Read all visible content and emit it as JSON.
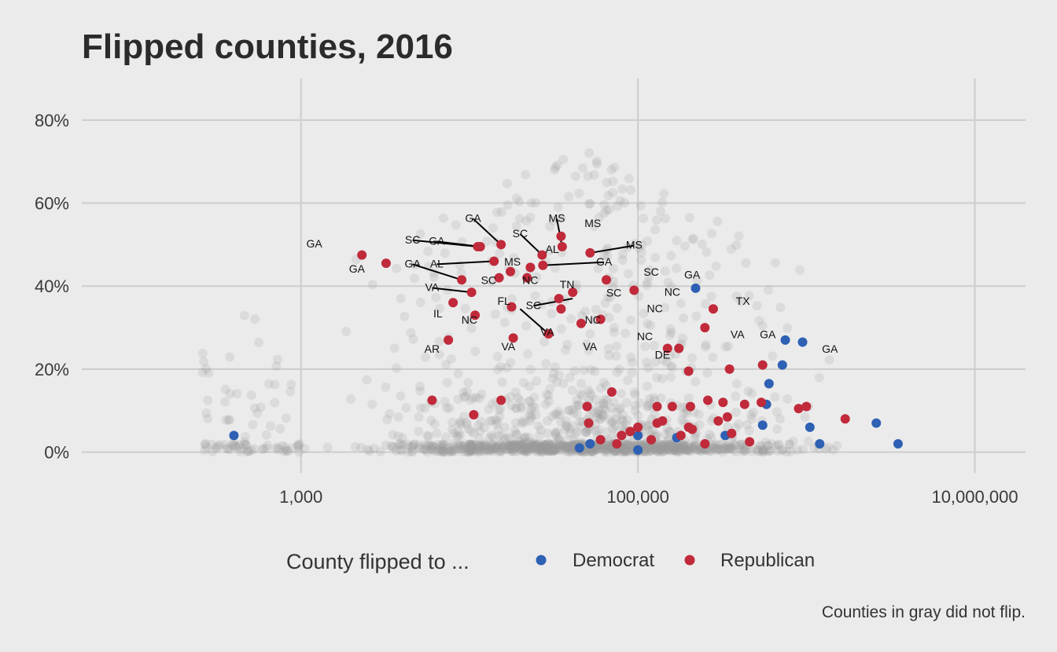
{
  "chart_data": {
    "type": "scatter",
    "title": "Flipped counties, 2016",
    "caption": "Counties in gray did not flip.",
    "xscale": "log10",
    "xlim": [
      50,
      20000000
    ],
    "ylim": [
      -0.05,
      0.9
    ],
    "x_ticks": [
      {
        "value": 1000,
        "label": "1,000"
      },
      {
        "value": 100000,
        "label": "100,000"
      },
      {
        "value": 10000000,
        "label": "10,000,000"
      }
    ],
    "y_ticks": [
      {
        "value": 0,
        "label": "0%"
      },
      {
        "value": 0.2,
        "label": "20%"
      },
      {
        "value": 0.4,
        "label": "40%"
      },
      {
        "value": 0.6,
        "label": "60%"
      },
      {
        "value": 0.8,
        "label": "80%"
      }
    ],
    "grid": true,
    "legend": {
      "title": "County flipped to ...",
      "position": "bottom",
      "entries": [
        {
          "label": "Democrat",
          "color": "#2e60b4"
        },
        {
          "label": "Republican",
          "color": "#c02a3a"
        }
      ]
    },
    "gray_color": "#9a9a9a",
    "series": [
      {
        "name": "Democrat",
        "color": "#2e60b4",
        "points": [
          [
            400,
            0.04
          ],
          [
            45000,
            0.01
          ],
          [
            52000,
            0.02
          ],
          [
            100000,
            0.005
          ],
          [
            100000,
            0.04
          ],
          [
            170000,
            0.035
          ],
          [
            220000,
            0.395
          ],
          [
            330000,
            0.04
          ],
          [
            550000,
            0.065
          ],
          [
            600000,
            0.165
          ],
          [
            580000,
            0.115
          ],
          [
            750000,
            0.27
          ],
          [
            720000,
            0.21
          ],
          [
            950000,
            0.265
          ],
          [
            1050000,
            0.06
          ],
          [
            1200000,
            0.02
          ],
          [
            2600000,
            0.07
          ],
          [
            3500000,
            0.02
          ]
        ]
      },
      {
        "name": "Republican",
        "color": "#c02a3a",
        "points": [
          [
            2300,
            0.475
          ],
          [
            3200,
            0.455
          ],
          [
            6000,
            0.125
          ],
          [
            7500,
            0.27
          ],
          [
            9000,
            0.415
          ],
          [
            8000,
            0.36
          ],
          [
            10800,
            0.33
          ],
          [
            10300,
            0.385
          ],
          [
            10600,
            0.09
          ],
          [
            11200,
            0.495
          ],
          [
            11600,
            0.495
          ],
          [
            14000,
            0.46
          ],
          [
            15000,
            0.42
          ],
          [
            15400,
            0.125
          ],
          [
            15400,
            0.5
          ],
          [
            17500,
            0.435
          ],
          [
            17800,
            0.35
          ],
          [
            18200,
            0.275
          ],
          [
            22000,
            0.42
          ],
          [
            23000,
            0.445
          ],
          [
            27000,
            0.475
          ],
          [
            27300,
            0.45
          ],
          [
            29500,
            0.285
          ],
          [
            35000,
            0.52
          ],
          [
            35500,
            0.495
          ],
          [
            34000,
            0.37
          ],
          [
            35000,
            0.345
          ],
          [
            41000,
            0.385
          ],
          [
            46000,
            0.31
          ],
          [
            50000,
            0.11
          ],
          [
            51000,
            0.07
          ],
          [
            60000,
            0.32
          ],
          [
            70000,
            0.145
          ],
          [
            52000,
            0.48
          ],
          [
            65000,
            0.415
          ],
          [
            95000,
            0.39
          ],
          [
            150000,
            0.25
          ],
          [
            175000,
            0.25
          ],
          [
            200000,
            0.195
          ],
          [
            250000,
            0.3
          ],
          [
            280000,
            0.345
          ],
          [
            350000,
            0.2
          ],
          [
            130000,
            0.11
          ],
          [
            160000,
            0.11
          ],
          [
            205000,
            0.11
          ],
          [
            260000,
            0.125
          ],
          [
            320000,
            0.12
          ],
          [
            430000,
            0.115
          ],
          [
            540000,
            0.12
          ],
          [
            550000,
            0.21
          ],
          [
            900000,
            0.105
          ],
          [
            1000000,
            0.11
          ],
          [
            1700000,
            0.08
          ],
          [
            100000,
            0.06
          ],
          [
            130000,
            0.07
          ],
          [
            180000,
            0.04
          ],
          [
            120000,
            0.03
          ],
          [
            200000,
            0.06
          ],
          [
            250000,
            0.02
          ],
          [
            300000,
            0.075
          ],
          [
            360000,
            0.045
          ],
          [
            460000,
            0.025
          ],
          [
            340000,
            0.085
          ],
          [
            90000,
            0.05
          ],
          [
            75000,
            0.02
          ],
          [
            80000,
            0.04
          ],
          [
            60000,
            0.03
          ],
          [
            140000,
            0.075
          ],
          [
            210000,
            0.055
          ]
        ]
      }
    ],
    "annotations": [
      {
        "text": "GA",
        "x": 1200,
        "y": 0.493,
        "point_x": 2300,
        "point_y": 0.475,
        "line": false
      },
      {
        "text": "GA",
        "x": 2150,
        "y": 0.433,
        "point_x": 3200,
        "point_y": 0.455,
        "line": false
      },
      {
        "text": "SC",
        "x": 4600,
        "y": 0.503,
        "point_x": 11200,
        "point_y": 0.495,
        "line": true
      },
      {
        "text": "GA",
        "x": 6400,
        "y": 0.5,
        "point_x": 11600,
        "point_y": 0.495,
        "line": true
      },
      {
        "text": "GA",
        "x": 10500,
        "y": 0.555,
        "point_x": 15400,
        "point_y": 0.5,
        "line": true
      },
      {
        "text": "SC",
        "x": 20000,
        "y": 0.518,
        "point_x": 27000,
        "point_y": 0.475,
        "line": true
      },
      {
        "text": "AL",
        "x": 6400,
        "y": 0.445,
        "point_x": 14000,
        "point_y": 0.46,
        "line": true
      },
      {
        "text": "GA",
        "x": 4600,
        "y": 0.445,
        "point_x": 9000,
        "point_y": 0.415,
        "line": true
      },
      {
        "text": "MS",
        "x": 18000,
        "y": 0.45,
        "point_x": 17500,
        "point_y": 0.435,
        "line": false
      },
      {
        "text": "AL",
        "x": 31000,
        "y": 0.48,
        "point_x": 35500,
        "point_y": 0.495,
        "line": false
      },
      {
        "text": "MS",
        "x": 33000,
        "y": 0.555,
        "point_x": 35500,
        "point_y": 0.495,
        "line": true
      },
      {
        "text": "MS",
        "x": 54000,
        "y": 0.542,
        "point_x": 35000,
        "point_y": 0.52,
        "line": false
      },
      {
        "text": "MS",
        "x": 95000,
        "y": 0.49,
        "point_x": 52000,
        "point_y": 0.48,
        "line": true
      },
      {
        "text": "GA",
        "x": 63000,
        "y": 0.45,
        "point_x": 27300,
        "point_y": 0.45,
        "line": true
      },
      {
        "text": "SC",
        "x": 120000,
        "y": 0.425,
        "point_x": 65000,
        "point_y": 0.415,
        "line": false
      },
      {
        "text": "NC",
        "x": 23000,
        "y": 0.405,
        "point_x": 22000,
        "point_y": 0.42,
        "line": false
      },
      {
        "text": "SC",
        "x": 13000,
        "y": 0.405,
        "point_x": 10300,
        "point_y": 0.385,
        "line": false
      },
      {
        "text": "VA",
        "x": 6000,
        "y": 0.388,
        "point_x": 10300,
        "point_y": 0.385,
        "line": true
      },
      {
        "text": "TN",
        "x": 38000,
        "y": 0.395,
        "point_x": 41000,
        "point_y": 0.37,
        "line": false
      },
      {
        "text": "SC",
        "x": 24000,
        "y": 0.345,
        "point_x": 41000,
        "point_y": 0.37,
        "line": true
      },
      {
        "text": "SC",
        "x": 72000,
        "y": 0.375,
        "point_x": 41000,
        "point_y": 0.37,
        "line": false
      },
      {
        "text": "NC",
        "x": 160000,
        "y": 0.377,
        "point_x": 95000,
        "point_y": 0.39,
        "line": false
      },
      {
        "text": "FL",
        "x": 16000,
        "y": 0.355,
        "point_x": 17800,
        "point_y": 0.35,
        "line": false
      },
      {
        "text": "IL",
        "x": 6500,
        "y": 0.325,
        "point_x": 8000,
        "point_y": 0.36,
        "line": false
      },
      {
        "text": "NC",
        "x": 10000,
        "y": 0.31,
        "point_x": 10800,
        "point_y": 0.33,
        "line": false
      },
      {
        "text": "NC",
        "x": 54000,
        "y": 0.31,
        "point_x": 46000,
        "point_y": 0.31,
        "line": false
      },
      {
        "text": "NC",
        "x": 126000,
        "y": 0.337,
        "point_x": 60000,
        "point_y": 0.32,
        "line": false
      },
      {
        "text": "VA",
        "x": 29000,
        "y": 0.28,
        "point_x": 20000,
        "point_y": 0.345,
        "line": true
      },
      {
        "text": "NC",
        "x": 110000,
        "y": 0.27,
        "point_x": 60000,
        "point_y": 0.32,
        "line": false
      },
      {
        "text": "VA",
        "x": 17000,
        "y": 0.245,
        "point_x": 18200,
        "point_y": 0.275,
        "line": false
      },
      {
        "text": "VA",
        "x": 52000,
        "y": 0.245,
        "point_x": 46000,
        "point_y": 0.31,
        "line": false
      },
      {
        "text": "AR",
        "x": 6000,
        "y": 0.24,
        "point_x": 7500,
        "point_y": 0.27,
        "line": false
      },
      {
        "text": "DE",
        "x": 140000,
        "y": 0.225,
        "point_x": 150000,
        "point_y": 0.25,
        "line": false
      },
      {
        "text": "VA",
        "x": 390000,
        "y": 0.275,
        "point_x": 250000,
        "point_y": 0.3,
        "line": false
      },
      {
        "text": "TX",
        "x": 420000,
        "y": 0.355,
        "point_x": 280000,
        "point_y": 0.345,
        "line": false
      },
      {
        "text": "GA",
        "x": 210000,
        "y": 0.418,
        "point_x": 220000,
        "point_y": 0.395,
        "line": false
      },
      {
        "text": "GA",
        "x": 590000,
        "y": 0.275,
        "point_x": 750000,
        "point_y": 0.27,
        "line": false
      },
      {
        "text": "GA",
        "x": 1380000,
        "y": 0.24,
        "point_x": 950000,
        "point_y": 0.265,
        "line": false
      }
    ]
  }
}
